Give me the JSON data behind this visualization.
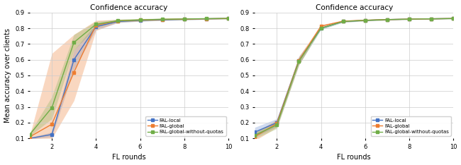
{
  "title": "Confidence accuracy",
  "xlabel": "FL rounds",
  "ylabel": "Mean accuracy over clients",
  "xlim": [
    1,
    10
  ],
  "ylim": [
    0.1,
    0.9
  ],
  "xticks": [
    2,
    4,
    6,
    8,
    10
  ],
  "yticks": [
    0.1,
    0.2,
    0.3,
    0.4,
    0.5,
    0.6,
    0.7,
    0.8,
    0.9
  ],
  "colors": {
    "local": "#4472c4",
    "global": "#ed7d31",
    "global_no_quotas": "#70ad47"
  },
  "legend_labels": [
    "FAL-local",
    "FAL-global",
    "FAL-global-without-quotas"
  ],
  "left_plot": {
    "x": [
      1,
      2,
      3,
      4,
      5,
      6,
      7,
      8,
      9,
      10
    ],
    "local_mean": [
      0.1,
      0.125,
      0.6,
      0.81,
      0.843,
      0.85,
      0.854,
      0.857,
      0.86,
      0.862
    ],
    "local_lo": [
      0.095,
      0.11,
      0.54,
      0.79,
      0.835,
      0.844,
      0.849,
      0.852,
      0.856,
      0.858
    ],
    "local_hi": [
      0.105,
      0.14,
      0.66,
      0.83,
      0.851,
      0.857,
      0.86,
      0.862,
      0.864,
      0.866
    ],
    "global_mean": [
      0.11,
      0.19,
      0.52,
      0.82,
      0.847,
      0.852,
      0.856,
      0.858,
      0.86,
      0.862
    ],
    "global_lo": [
      0.1,
      0.1,
      0.34,
      0.785,
      0.838,
      0.845,
      0.85,
      0.854,
      0.857,
      0.859
    ],
    "global_hi": [
      0.12,
      0.64,
      0.76,
      0.85,
      0.856,
      0.86,
      0.862,
      0.863,
      0.864,
      0.865
    ],
    "gnq_mean": [
      0.125,
      0.295,
      0.71,
      0.825,
      0.848,
      0.853,
      0.857,
      0.859,
      0.861,
      0.863
    ],
    "gnq_lo": [
      0.115,
      0.225,
      0.66,
      0.808,
      0.84,
      0.846,
      0.851,
      0.854,
      0.857,
      0.859
    ],
    "gnq_hi": [
      0.135,
      0.365,
      0.76,
      0.843,
      0.857,
      0.861,
      0.863,
      0.864,
      0.865,
      0.867
    ]
  },
  "right_plot": {
    "x": [
      1,
      2,
      3,
      4,
      5,
      6,
      7,
      8,
      9,
      10
    ],
    "local_mean": [
      0.14,
      0.2,
      0.595,
      0.8,
      0.843,
      0.85,
      0.855,
      0.858,
      0.86,
      0.862
    ],
    "local_lo": [
      0.11,
      0.175,
      0.57,
      0.793,
      0.838,
      0.846,
      0.851,
      0.855,
      0.857,
      0.859
    ],
    "local_hi": [
      0.17,
      0.225,
      0.62,
      0.807,
      0.848,
      0.854,
      0.859,
      0.861,
      0.863,
      0.865
    ],
    "global_mean": [
      0.11,
      0.195,
      0.595,
      0.813,
      0.845,
      0.851,
      0.855,
      0.858,
      0.86,
      0.862
    ],
    "global_lo": [
      0.085,
      0.17,
      0.568,
      0.804,
      0.84,
      0.847,
      0.852,
      0.856,
      0.858,
      0.86
    ],
    "global_hi": [
      0.135,
      0.22,
      0.622,
      0.822,
      0.85,
      0.856,
      0.859,
      0.861,
      0.862,
      0.864
    ],
    "gnq_mean": [
      0.12,
      0.185,
      0.59,
      0.8,
      0.843,
      0.85,
      0.855,
      0.858,
      0.86,
      0.862
    ],
    "gnq_lo": [
      0.098,
      0.162,
      0.566,
      0.792,
      0.838,
      0.846,
      0.851,
      0.855,
      0.857,
      0.859
    ],
    "gnq_hi": [
      0.142,
      0.208,
      0.614,
      0.808,
      0.848,
      0.854,
      0.859,
      0.861,
      0.863,
      0.865
    ]
  }
}
